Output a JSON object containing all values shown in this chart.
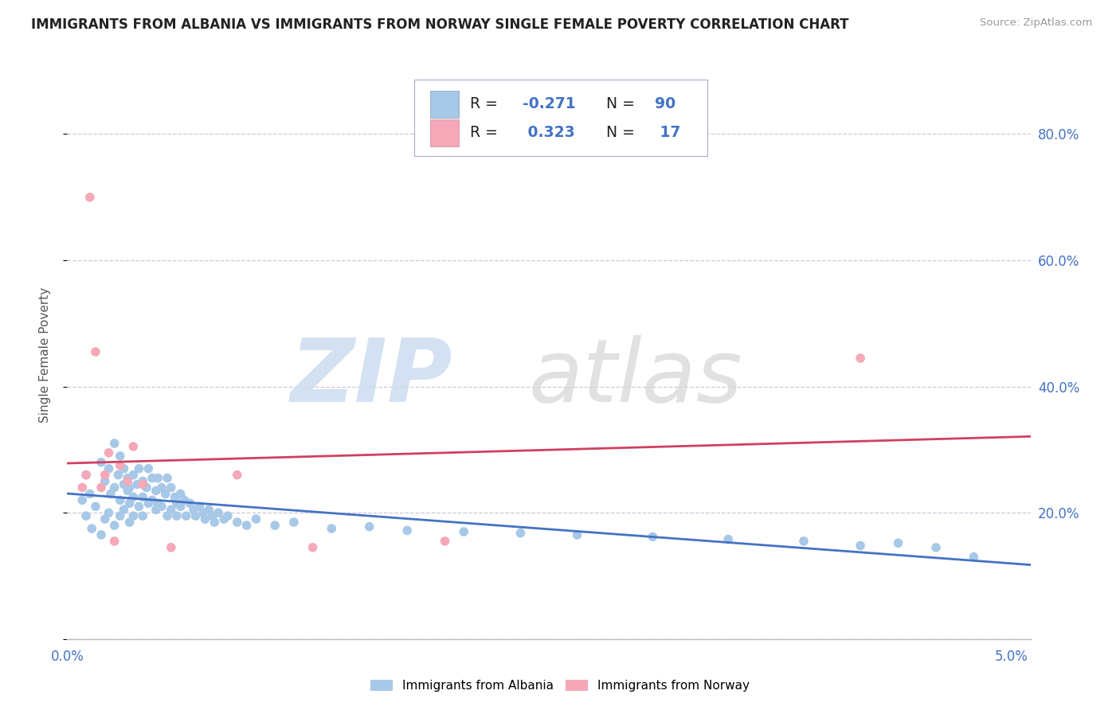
{
  "title": "IMMIGRANTS FROM ALBANIA VS IMMIGRANTS FROM NORWAY SINGLE FEMALE POVERTY CORRELATION CHART",
  "source": "Source: ZipAtlas.com",
  "ylabel": "Single Female Poverty",
  "xlim": [
    0.0,
    0.051
  ],
  "ylim": [
    0.0,
    0.9
  ],
  "albania_color": "#a8c8e8",
  "norway_color": "#f4a8b8",
  "albania_line_color": "#4472c4",
  "norway_line_color": "#d04060",
  "albania_R": -0.271,
  "albania_N": 90,
  "norway_R": 0.323,
  "norway_N": 17,
  "background_color": "#ffffff",
  "grid_color": "#c8c8d8",
  "title_color": "#222222",
  "axis_tick_color": "#4472c4",
  "legend_text_color": "#4472c4",
  "watermark_zip_color": "#ccdcf0",
  "watermark_atlas_color": "#d8d8d8",
  "albania_x": [
    0.0008,
    0.001,
    0.001,
    0.0012,
    0.0013,
    0.0015,
    0.0018,
    0.0018,
    0.002,
    0.002,
    0.0022,
    0.0022,
    0.0023,
    0.0025,
    0.0025,
    0.0025,
    0.0027,
    0.0028,
    0.0028,
    0.0028,
    0.003,
    0.003,
    0.003,
    0.0032,
    0.0032,
    0.0033,
    0.0033,
    0.0033,
    0.0035,
    0.0035,
    0.0035,
    0.0037,
    0.0038,
    0.0038,
    0.004,
    0.004,
    0.004,
    0.0042,
    0.0043,
    0.0043,
    0.0045,
    0.0045,
    0.0047,
    0.0047,
    0.0048,
    0.0048,
    0.005,
    0.005,
    0.0052,
    0.0053,
    0.0053,
    0.0055,
    0.0055,
    0.0057,
    0.0058,
    0.0058,
    0.006,
    0.006,
    0.0062,
    0.0063,
    0.0065,
    0.0067,
    0.0068,
    0.007,
    0.0072,
    0.0073,
    0.0075,
    0.0077,
    0.0078,
    0.008,
    0.0083,
    0.0085,
    0.009,
    0.0095,
    0.01,
    0.011,
    0.012,
    0.014,
    0.016,
    0.018,
    0.021,
    0.024,
    0.027,
    0.031,
    0.035,
    0.039,
    0.042,
    0.044,
    0.046,
    0.048
  ],
  "albania_y": [
    0.22,
    0.26,
    0.195,
    0.23,
    0.175,
    0.21,
    0.28,
    0.165,
    0.25,
    0.19,
    0.27,
    0.2,
    0.23,
    0.31,
    0.24,
    0.18,
    0.26,
    0.22,
    0.29,
    0.195,
    0.245,
    0.27,
    0.205,
    0.235,
    0.255,
    0.215,
    0.24,
    0.185,
    0.26,
    0.225,
    0.195,
    0.245,
    0.27,
    0.21,
    0.25,
    0.225,
    0.195,
    0.24,
    0.27,
    0.215,
    0.255,
    0.22,
    0.235,
    0.205,
    0.255,
    0.215,
    0.24,
    0.21,
    0.23,
    0.255,
    0.195,
    0.24,
    0.205,
    0.225,
    0.215,
    0.195,
    0.23,
    0.21,
    0.22,
    0.195,
    0.215,
    0.205,
    0.195,
    0.21,
    0.2,
    0.19,
    0.205,
    0.195,
    0.185,
    0.2,
    0.19,
    0.195,
    0.185,
    0.18,
    0.19,
    0.18,
    0.185,
    0.175,
    0.178,
    0.172,
    0.17,
    0.168,
    0.165,
    0.162,
    0.158,
    0.155,
    0.148,
    0.152,
    0.145,
    0.13
  ],
  "norway_x": [
    0.0008,
    0.001,
    0.0012,
    0.0015,
    0.0018,
    0.002,
    0.0022,
    0.0025,
    0.0028,
    0.0032,
    0.0035,
    0.004,
    0.0055,
    0.009,
    0.013,
    0.02,
    0.042
  ],
  "norway_y": [
    0.24,
    0.26,
    0.7,
    0.455,
    0.24,
    0.26,
    0.295,
    0.155,
    0.275,
    0.25,
    0.305,
    0.245,
    0.145,
    0.26,
    0.145,
    0.155,
    0.445
  ]
}
